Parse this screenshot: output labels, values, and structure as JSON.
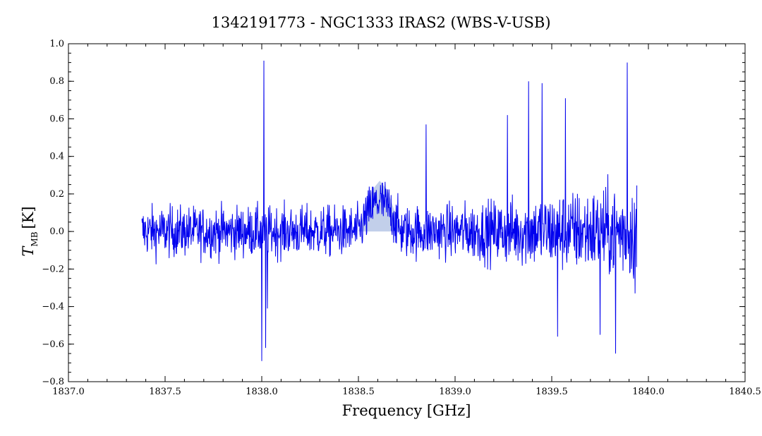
{
  "chart_data": {
    "type": "line",
    "title": "1342191773 - NGC1333 IRAS2 (WBS-V-USB)",
    "xlabel": "Frequency [GHz]",
    "ylabel_main": "T",
    "ylabel_sub": "MB",
    "ylabel_unit": "[K]",
    "xlim": [
      1837.0,
      1840.5
    ],
    "ylim": [
      -0.8,
      1.0
    ],
    "x_ticks": [
      "1837.0",
      "1837.5",
      "1838.0",
      "1838.5",
      "1839.0",
      "1839.5",
      "1840.0",
      "1840.5"
    ],
    "y_ticks": [
      "−0.8",
      "−0.6",
      "−0.4",
      "−0.2",
      "0.0",
      "0.2",
      "0.4",
      "0.6",
      "0.8",
      "1.0"
    ],
    "grid": false,
    "colors": {
      "spectrum": "#0000ee",
      "highlight": "#8fa8d8"
    },
    "series": [
      {
        "kind": "spectrum",
        "x_range": [
          1837.38,
          1839.94
        ],
        "noise_envelope": [
          {
            "x": 1837.38,
            "amp": 0.12
          },
          {
            "x": 1838.0,
            "amp": 0.12
          },
          {
            "x": 1838.5,
            "amp": 0.12
          },
          {
            "x": 1839.0,
            "amp": 0.13
          },
          {
            "x": 1839.3,
            "amp": 0.16
          },
          {
            "x": 1839.6,
            "amp": 0.19
          },
          {
            "x": 1839.94,
            "amp": 0.23
          }
        ],
        "peaks": [
          {
            "x": 1838.01,
            "y": 0.91
          },
          {
            "x": 1838.0,
            "y": -0.69
          },
          {
            "x": 1838.02,
            "y": -0.62
          },
          {
            "x": 1838.03,
            "y": -0.41
          },
          {
            "x": 1839.53,
            "y": -0.56
          },
          {
            "x": 1839.75,
            "y": -0.55
          },
          {
            "x": 1839.83,
            "y": -0.65
          },
          {
            "x": 1839.89,
            "y": 0.9
          },
          {
            "x": 1839.93,
            "y": 0.9
          },
          {
            "x": 1839.93,
            "y": -0.33
          },
          {
            "x": 1839.38,
            "y": 0.8
          },
          {
            "x": 1839.45,
            "y": 0.79
          },
          {
            "x": 1839.57,
            "y": 0.71
          },
          {
            "x": 1839.27,
            "y": 0.62
          },
          {
            "x": 1838.85,
            "y": 0.57
          }
        ]
      },
      {
        "kind": "line-feature",
        "profile": [
          {
            "x": 1838.5,
            "y": 0.0
          },
          {
            "x": 1838.53,
            "y": 0.1
          },
          {
            "x": 1838.57,
            "y": 0.22
          },
          {
            "x": 1838.61,
            "y": 0.27
          },
          {
            "x": 1838.65,
            "y": 0.22
          },
          {
            "x": 1838.69,
            "y": 0.1
          },
          {
            "x": 1838.72,
            "y": 0.0
          }
        ]
      }
    ]
  }
}
